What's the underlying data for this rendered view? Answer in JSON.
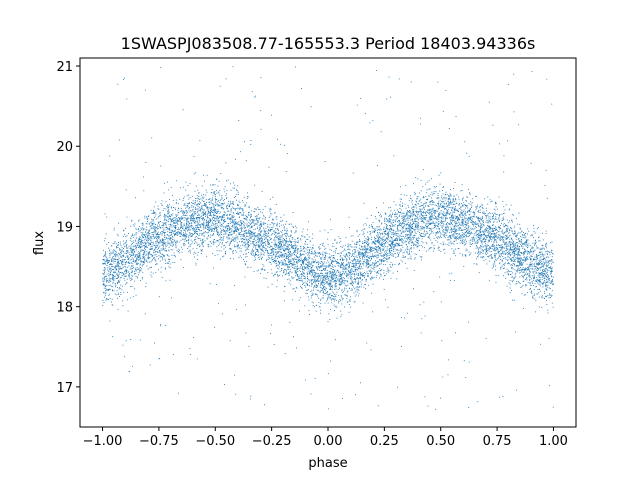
{
  "chart_data": {
    "type": "scatter",
    "title": "1SWASPJ083508.77-165553.3 Period 18403.94336s",
    "xlabel": "phase",
    "ylabel": "flux",
    "xlim": [
      -1.1,
      1.1
    ],
    "ylim": [
      16.5,
      21.1
    ],
    "xticks": [
      -1.0,
      -0.75,
      -0.5,
      -0.25,
      0.0,
      0.25,
      0.5,
      0.75,
      1.0
    ],
    "xtick_labels": [
      "−1.00",
      "−0.75",
      "−0.50",
      "−0.25",
      "0.00",
      "0.25",
      "0.50",
      "0.75",
      "1.00"
    ],
    "yticks": [
      17,
      18,
      19,
      20,
      21
    ],
    "ytick_labels": [
      "17",
      "18",
      "19",
      "20",
      "21"
    ],
    "grid": false,
    "marker_color": "#1f77b4",
    "series": [
      {
        "x": [
          -1.0,
          -0.9,
          -0.8,
          -0.7,
          -0.6,
          -0.5,
          -0.4,
          -0.3,
          -0.2,
          -0.1,
          0.0,
          0.1,
          0.2,
          0.3,
          0.4,
          0.5,
          0.6,
          0.7,
          0.8,
          0.9,
          1.0
        ],
        "y": [
          18.4,
          18.55,
          18.8,
          18.95,
          19.05,
          19.1,
          19.0,
          18.85,
          18.7,
          18.5,
          18.35,
          18.45,
          18.7,
          18.9,
          19.05,
          19.1,
          19.05,
          18.9,
          18.75,
          18.55,
          18.4
        ],
        "scatter_halfwidth": 0.35,
        "outlier_range": [
          16.7,
          21.0
        ]
      }
    ]
  }
}
